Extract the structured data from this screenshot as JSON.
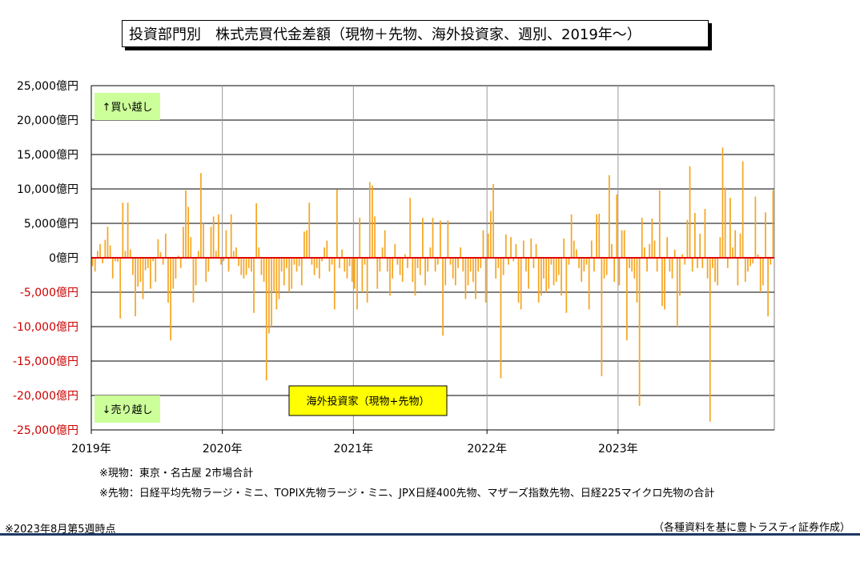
{
  "title": "投資部門別　株式売買代金差額（現物＋先物、海外投資家、週別、2019年～）",
  "notes": {
    "spot": "※現物：東京・名古屋 2市場合計",
    "futures": "※先物：日経平均先物ラージ・ミニ、TOPIX先物ラージ・ミニ、JPX日経400先物、マザーズ指数先物、日経225マイクロ先物の合計",
    "as_of": "※2023年8月第5週時点",
    "source": "（各種資料を基に豊トラスティ証券作成）"
  },
  "colors": {
    "bar": "#f5a623",
    "zero_line": "#e00000",
    "negative_label": "#cc0000",
    "buy_box": "#ccff99",
    "sell_box": "#ccff99",
    "series_box": "#ffff00"
  },
  "chart_data": {
    "type": "bar",
    "title": "投資部門別　株式売買代金差額（現物＋先物、海外投資家、週別、2019年～）",
    "series": [
      {
        "name": "海外投資家（現物+先物）",
        "values": [
          -1200,
          -2000,
          1000,
          2000,
          -800,
          2600,
          4500,
          1800,
          -3000,
          -500,
          -600,
          -8800,
          8000,
          1000,
          8000,
          1200,
          -2500,
          -8500,
          -4200,
          -3500,
          -6000,
          -1800,
          -1500,
          -4500,
          -500,
          -3500,
          2700,
          800,
          -1000,
          3500,
          -6500,
          -12000,
          -4500,
          -3000,
          300,
          -1500,
          4500,
          9800,
          7400,
          3000,
          -6500,
          -4000,
          1000,
          12300,
          5000,
          -3500,
          -2000,
          4500,
          6000,
          1000,
          6300,
          -1000,
          -500,
          4000,
          -2000,
          6300,
          1000,
          1500,
          -1200,
          -2500,
          -3000,
          -2500,
          -1500,
          -2000,
          -8000,
          7900,
          1500,
          -2500,
          -3500,
          -17800,
          -11000,
          -10000,
          -5000,
          -7500,
          -6000,
          -2000,
          -4000,
          -1500,
          -5000,
          -4500,
          -1000,
          -2000,
          -1200,
          -4000,
          3800,
          4000,
          8000,
          -1000,
          -2500,
          -1500,
          -3000,
          -500,
          1500,
          2500,
          -2000,
          -1000,
          -7500,
          9900,
          -1500,
          1200,
          -2000,
          -3000,
          -1200,
          -3500,
          -4500,
          -7500,
          5800,
          -5000,
          -1000,
          -6500,
          11000,
          10500,
          6000,
          -4500,
          -2000,
          1500,
          4000,
          -2000,
          -5500,
          -3000,
          2000,
          -1000,
          -2500,
          -3500,
          500,
          -1500,
          8700,
          -3500,
          -5500,
          -1500,
          -2500,
          5800,
          -4000,
          -2000,
          1500,
          5800,
          -2000,
          -1000,
          5400,
          -11300,
          -4000,
          5400,
          -1000,
          -3000,
          -4000,
          -1500,
          1500,
          -2000,
          -6000,
          -4000,
          -2000,
          -3500,
          -6000,
          -2000,
          -1500,
          4000,
          -6500,
          3500,
          6800,
          10700,
          -3000,
          -1500,
          -17500,
          -2500,
          3400,
          -1000,
          3000,
          -500,
          2000,
          -6500,
          -7500,
          2500,
          -2000,
          -4500,
          2800,
          -1500,
          2000,
          -6500,
          -5500,
          -3000,
          -5000,
          -4500,
          -1000,
          -4000,
          -3500,
          -2500,
          -5500,
          2800,
          -8000,
          -1000,
          6300,
          2500,
          1200,
          -1500,
          -3500,
          -2000,
          -1000,
          -7500,
          2500,
          -2000,
          6300,
          6400,
          -17200,
          -3000,
          -2500,
          12000,
          2000,
          -3500,
          9200,
          -4000,
          4000,
          4000,
          -12000,
          -1500,
          -2000,
          -3000,
          -6500,
          -21500,
          5800,
          1500,
          -2000,
          2000,
          5700,
          2500,
          -2000,
          9800,
          -7000,
          -7500,
          3000,
          -2000,
          -3000,
          1200,
          -10000,
          -5500,
          500,
          -1000,
          5500,
          13300,
          -2000,
          6500,
          -1500,
          3500,
          -1500,
          7100,
          -3000,
          -23800,
          -1500,
          -3500,
          -4000,
          3000,
          16000,
          10200,
          -1500,
          8700,
          1500,
          4000,
          -4000,
          3500,
          14000,
          -3500,
          -2000,
          -1200,
          -800,
          8900,
          500,
          -5000,
          -4000,
          6600,
          -8500,
          -1000,
          9800
        ]
      }
    ],
    "x_tick_labels": [
      "2019年",
      "2020年",
      "2021年",
      "2022年",
      "2023年"
    ],
    "x_tick_index": [
      0,
      52,
      104,
      157,
      209
    ],
    "y_tick_labels": [
      "25,000億円",
      "20,000億円",
      "15,000億円",
      "10,000億円",
      "5,000億円",
      "0億円",
      "-5,000億円",
      "-10,000億円",
      "-15,000億円",
      "-20,000億円",
      "-25,000億円"
    ],
    "ylim": [
      -25000,
      25000
    ],
    "y_step": 5000,
    "grid": true,
    "annotations": {
      "buy": "↑買い越し",
      "sell": "↓売り越し"
    }
  }
}
